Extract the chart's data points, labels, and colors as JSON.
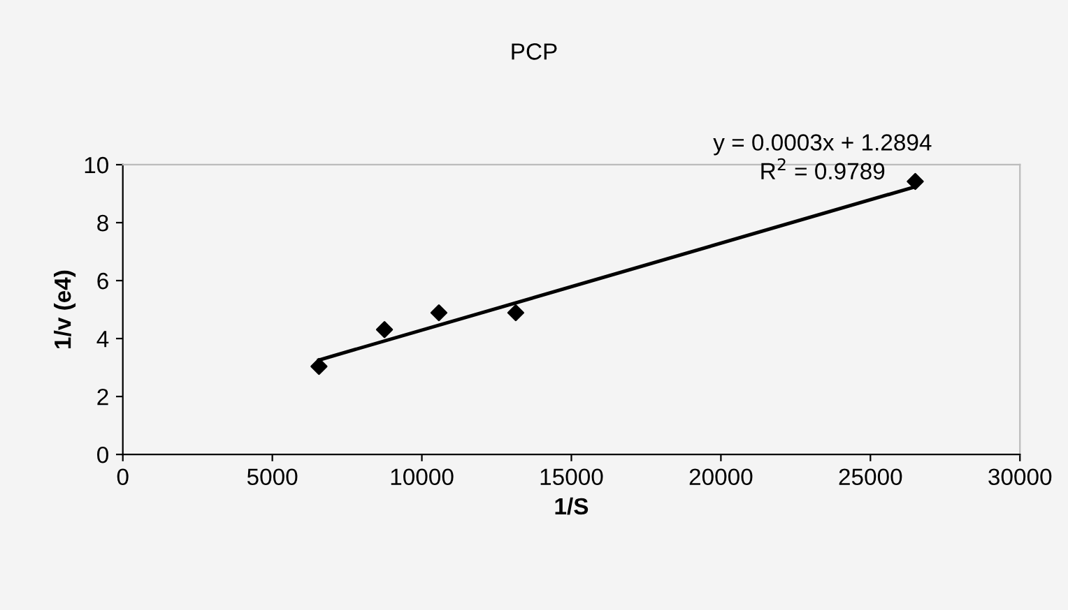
{
  "chart_data": {
    "type": "scatter",
    "title": "PCP",
    "xlabel": "1/S",
    "ylabel": "1/v (e4)",
    "series": [
      {
        "color": "#000000",
        "marker": "diamond",
        "x": [
          6560,
          8750,
          10570,
          13140,
          26500
        ],
        "values": [
          3.04,
          4.31,
          4.89,
          4.89,
          9.42
        ]
      },
      {
        "type": "line",
        "color": "#000000",
        "line_style": "solid",
        "x": [
          6560,
          26500
        ],
        "values": [
          3.26,
          9.24
        ]
      }
    ],
    "annotations": [
      {
        "text": "y = 0.0003x + 1.2894"
      },
      {
        "text": "R$^{2}$ = 0.9789"
      }
    ],
    "xlim": [
      0,
      30000
    ],
    "xticks": [
      0,
      5000,
      10000,
      15000,
      20000,
      25000,
      30000
    ],
    "ylim": [
      0,
      10
    ],
    "yticks": [
      0,
      2,
      4,
      6,
      8,
      10
    ],
    "grid": false,
    "legend": false
  }
}
